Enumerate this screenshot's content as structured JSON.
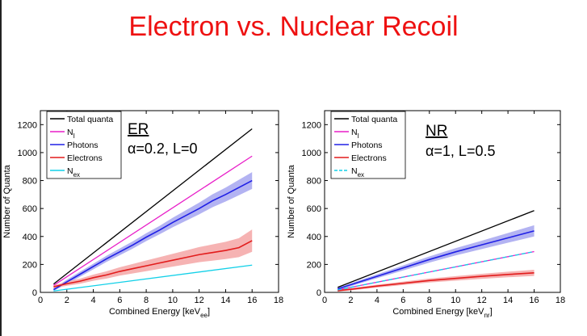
{
  "title": "Electron vs. Nuclear Recoil",
  "colors": {
    "title": "#ee1111",
    "total": "#000000",
    "ni": "#e81ec8",
    "photons": "#2020e6",
    "photons_band": "#b3b3f2",
    "electrons": "#e21c1c",
    "electrons_band": "#f6b3b3",
    "nex": "#12d0e8"
  },
  "chart_data": [
    {
      "type": "line",
      "panel": "ER",
      "xlabel": "Combined Energy [keV",
      "xlabel_sub": "ee",
      "xlabel_end": "]",
      "ylabel": "Number of Quanta",
      "xlim": [
        0,
        18
      ],
      "ylim": [
        0,
        1300
      ],
      "xticks": [
        0,
        2,
        4,
        6,
        8,
        10,
        12,
        14,
        16,
        18
      ],
      "yticks": [
        0,
        200,
        400,
        600,
        800,
        1000,
        1200
      ],
      "legend_position": "top-left",
      "annotation": {
        "heading": "ER",
        "params": "α=0.2, L=0"
      },
      "series": [
        {
          "name": "Total quanta",
          "key": "total",
          "x": [
            1,
            16
          ],
          "y": [
            60,
            1170
          ]
        },
        {
          "name": "N",
          "sub": "I",
          "key": "ni",
          "x": [
            1,
            16
          ],
          "y": [
            50,
            975
          ]
        },
        {
          "name": "Photons",
          "key": "photons",
          "band": true,
          "x": [
            1,
            2,
            3,
            4,
            5,
            6,
            7,
            8,
            9,
            10,
            11,
            12,
            13,
            14,
            15,
            16
          ],
          "y": [
            20,
            75,
            130,
            185,
            240,
            290,
            340,
            395,
            445,
            500,
            550,
            600,
            655,
            700,
            750,
            800
          ],
          "err": [
            10,
            15,
            18,
            20,
            22,
            24,
            26,
            28,
            30,
            34,
            38,
            42,
            46,
            50,
            55,
            60
          ]
        },
        {
          "name": "Electrons",
          "key": "electrons",
          "band": true,
          "x": [
            1,
            2,
            3,
            4,
            5,
            6,
            7,
            8,
            9,
            10,
            11,
            12,
            13,
            14,
            15,
            16
          ],
          "y": [
            40,
            62,
            80,
            105,
            125,
            150,
            170,
            190,
            210,
            230,
            250,
            270,
            285,
            300,
            320,
            370
          ],
          "err": [
            10,
            15,
            18,
            22,
            26,
            30,
            34,
            38,
            42,
            46,
            50,
            54,
            58,
            62,
            68,
            80
          ]
        },
        {
          "name": "N",
          "sub": "ex",
          "key": "nex",
          "x": [
            1,
            16
          ],
          "y": [
            10,
            195
          ]
        }
      ]
    },
    {
      "type": "line",
      "panel": "NR",
      "xlabel": "Combined Energy [keV",
      "xlabel_sub": "nr",
      "xlabel_end": "]",
      "ylabel": "Number of Quanta",
      "xlim": [
        0,
        18
      ],
      "ylim": [
        0,
        1300
      ],
      "xticks": [
        0,
        2,
        4,
        6,
        8,
        10,
        12,
        14,
        16,
        18
      ],
      "yticks": [
        0,
        200,
        400,
        600,
        800,
        1000,
        1200
      ],
      "legend_position": "top-left",
      "annotation": {
        "heading": "NR",
        "params": "α=1, L=0.5"
      },
      "series": [
        {
          "name": "Total quanta",
          "key": "total",
          "x": [
            1,
            16
          ],
          "y": [
            36,
            585
          ]
        },
        {
          "name": "N",
          "sub": "I",
          "key": "ni",
          "x": [
            1,
            16
          ],
          "y": [
            18,
            292
          ]
        },
        {
          "name": "Photons",
          "key": "photons",
          "band": true,
          "x": [
            1,
            2,
            4,
            6,
            8,
            10,
            12,
            14,
            16
          ],
          "y": [
            25,
            55,
            115,
            175,
            235,
            290,
            340,
            390,
            440
          ],
          "err": [
            8,
            10,
            14,
            18,
            22,
            26,
            30,
            35,
            40
          ]
        },
        {
          "name": "Electrons",
          "key": "electrons",
          "band": true,
          "x": [
            1,
            2,
            4,
            6,
            8,
            10,
            12,
            14,
            16
          ],
          "y": [
            12,
            22,
            45,
            65,
            85,
            100,
            115,
            128,
            140
          ],
          "err": [
            6,
            8,
            10,
            12,
            14,
            16,
            18,
            20,
            22
          ]
        },
        {
          "name": "N",
          "sub": "ex",
          "key": "nex",
          "dashed": true,
          "x": [
            1,
            16
          ],
          "y": [
            18,
            292
          ]
        }
      ]
    }
  ]
}
